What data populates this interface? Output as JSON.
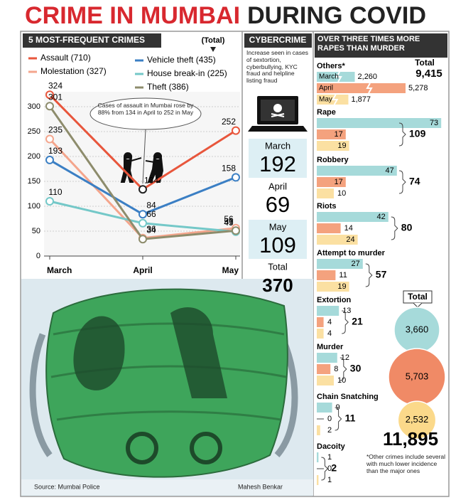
{
  "title_part1": "CRIME IN MUMBAI",
  "title_part2": "DURING COVID",
  "chart_data": [
    {
      "type": "line",
      "title": "5 MOST-FREQUENT CRIMES",
      "total_note": "(Total)",
      "annotation": "Cases of assault in Mumbai rose by 88% from 134 in April to 252 in May",
      "categories": [
        "March",
        "April",
        "May"
      ],
      "series": [
        {
          "name": "Assault (710)",
          "color": "#e8563c",
          "values": [
            324,
            134,
            252
          ]
        },
        {
          "name": "Molestation (327)",
          "color": "#f4a58c",
          "values": [
            235,
            36,
            56
          ]
        },
        {
          "name": "Vehicle theft (435)",
          "color": "#3b7fc4",
          "values": [
            193,
            84,
            158
          ]
        },
        {
          "name": "House break-in (225)",
          "color": "#74c8c8",
          "values": [
            110,
            66,
            49
          ]
        },
        {
          "name": "Theft (386)",
          "color": "#8d8c6c",
          "values": [
            301,
            34,
            51
          ]
        }
      ],
      "ylim": [
        0,
        330
      ],
      "yticks": [
        0,
        50,
        100,
        150,
        200,
        250,
        300
      ],
      "grid": true
    },
    {
      "type": "bar",
      "title": "OVER THREE TIMES MORE RAPES THAN MURDER",
      "subtitle": "Others*",
      "total_title": "Total",
      "total": {
        "value": 9415,
        "label": "9,415"
      },
      "categories": [
        "March",
        "April",
        "May"
      ],
      "values": [
        2260,
        5278,
        1877
      ],
      "value_labels": [
        "2,260",
        "5,278",
        "1,877"
      ],
      "colors": [
        "#a6dada",
        "#f4a27e",
        "#fbe0a2"
      ]
    },
    {
      "type": "bar",
      "categories": [
        "Rape",
        "Robbery",
        "Riots",
        "Attempt to murder",
        "Extortion",
        "Murder",
        "Chain Snatching",
        "Dacoity"
      ],
      "series": [
        {
          "color": "#a6dada",
          "values": [
            73,
            47,
            42,
            27,
            13,
            12,
            9,
            1
          ]
        },
        {
          "color": "#f4a27e",
          "values": [
            17,
            17,
            14,
            11,
            4,
            8,
            0,
            0
          ]
        },
        {
          "color": "#fbe0a2",
          "values": [
            19,
            10,
            24,
            19,
            4,
            10,
            2,
            1
          ]
        }
      ],
      "totals": [
        109,
        74,
        80,
        57,
        21,
        30,
        11,
        2
      ]
    },
    {
      "type": "bubble",
      "title": "Total",
      "values": [
        3660,
        5703,
        2532
      ],
      "value_labels": [
        "3,660",
        "5,703",
        "2,532"
      ],
      "colors": [
        "#a6dada",
        "#f08a66",
        "#fbd98a"
      ],
      "total": {
        "value": 11895,
        "label": "11,895"
      },
      "note": "*Other crimes include several with much lower incidence than the major ones"
    }
  ],
  "cybercrime": {
    "title": "CYBERCRIME",
    "note": "Increase seen in cases of sextortion, cyberbullying, KYC fraud and helpline listing fraud",
    "rows": [
      {
        "label": "March",
        "value": 192
      },
      {
        "label": "April",
        "value": 69
      },
      {
        "label": "May",
        "value": 109
      }
    ],
    "total_label": "Total",
    "total": 370
  },
  "source": "Source: Mumbai Police",
  "credit": "Mahesh Benkar"
}
